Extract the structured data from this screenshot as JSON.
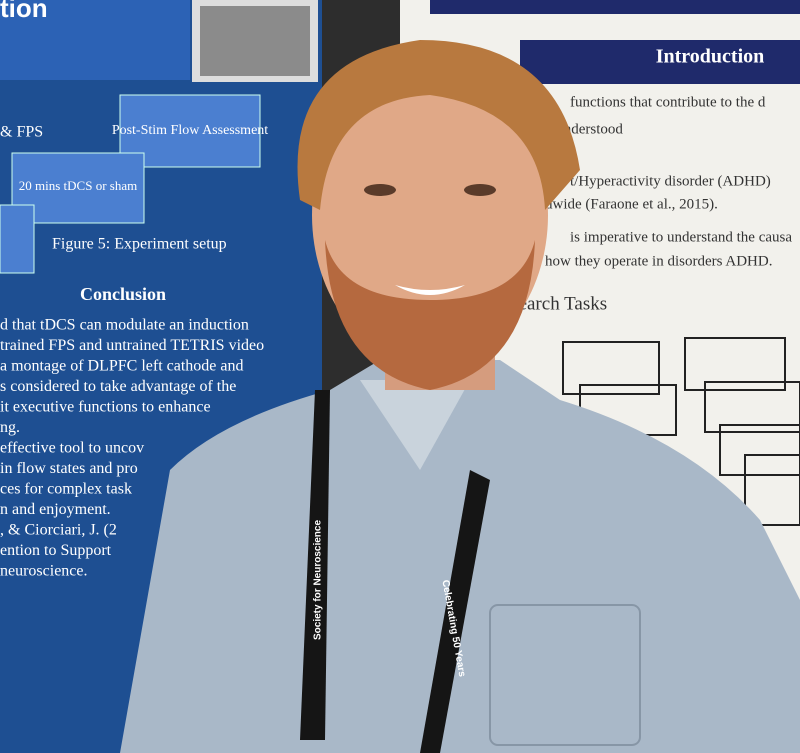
{
  "left_poster": {
    "title_fragment": "tion",
    "flow_labels": [
      "& FPS",
      "Post-Stim Flow Assessment",
      "20 mins tDCS or sham"
    ],
    "figure_caption": "Figure 5: Experiment setup",
    "conclusion_heading": "Conclusion",
    "conclusion_lines": [
      "d that tDCS can modulate an induction",
      "trained FPS and untrained TETRIS video",
      "a montage of DLPFC left cathode and",
      "s considered to take advantage of the",
      "it executive functions to enhance",
      "ng.",
      "effective tool to uncov",
      "in flow states and pro",
      "ces for complex task",
      "n and enjoyment.",
      ", & Ciorciari, J. (2",
      "ention to Support",
      "neuroscience."
    ]
  },
  "right_poster": {
    "heading": "Introduction",
    "lines": [
      "functions that contribute to the d",
      "y understood",
      "t/Hyperactivity disorder (ADHD)",
      "dwide (Faraone et al., 2015).",
      "is imperative to understand the causa",
      "how they operate in disorders ADHD."
    ],
    "section_heading": "Search Tasks"
  },
  "lanyard": {
    "text_left": "Society for Neuroscience",
    "text_right": "Celebrating 50 Years"
  }
}
